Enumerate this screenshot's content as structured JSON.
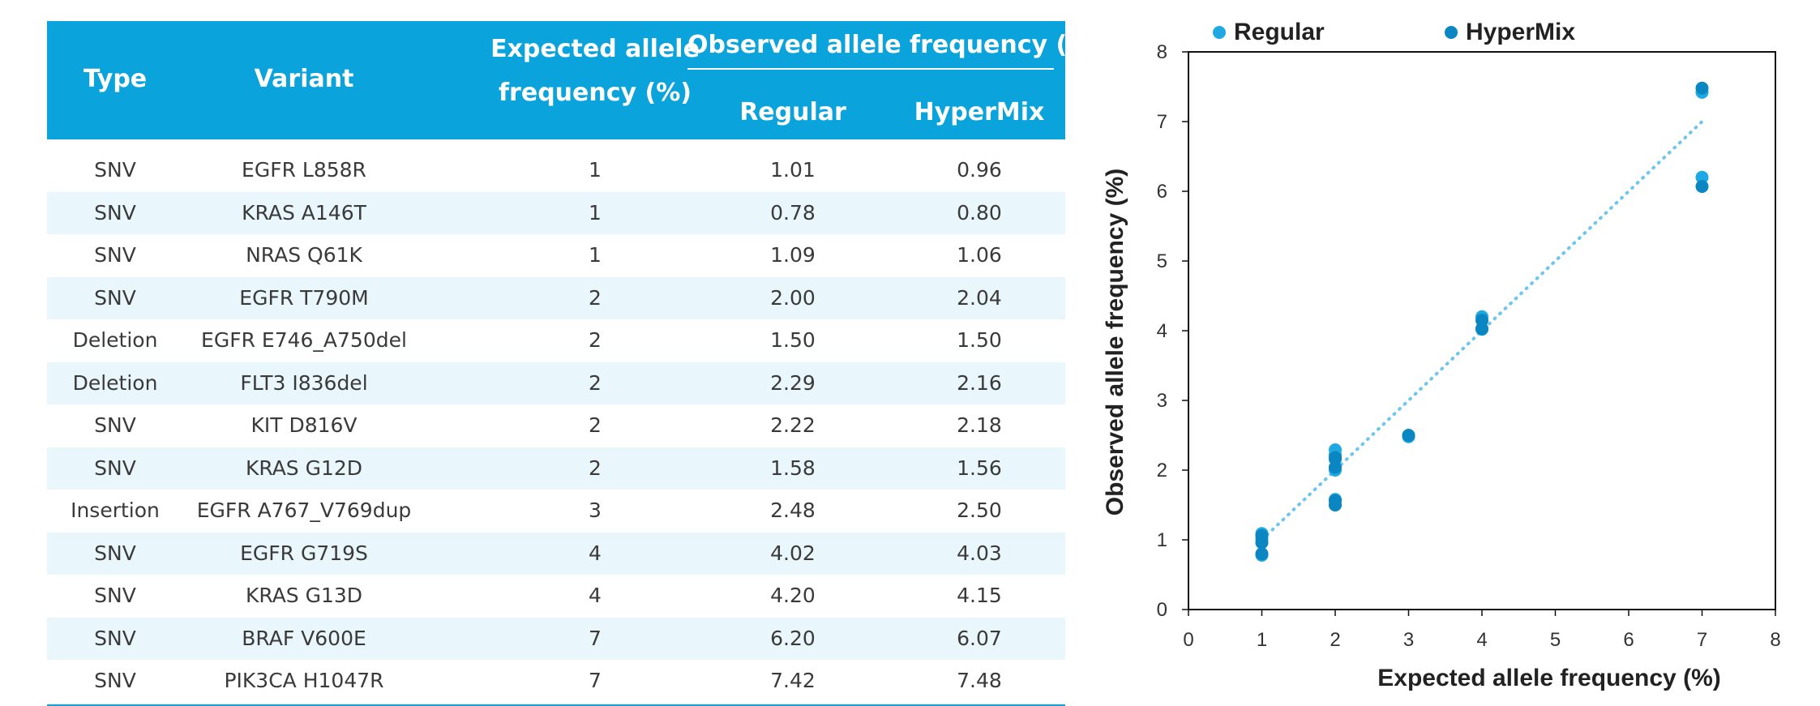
{
  "table": {
    "headers": {
      "type": "Type",
      "variant": "Variant",
      "expected": "Expected allele\nfrequency (%)",
      "expected_line1": "Expected allele",
      "expected_line2": "frequency (%)",
      "observed": "Observed allele frequency (%)",
      "regular": "Regular",
      "hypermix": "HyperMix"
    },
    "rows": [
      {
        "type": "SNV",
        "variant": "EGFR L858R",
        "expected": "1",
        "regular": "1.01",
        "hypermix": "0.96"
      },
      {
        "type": "SNV",
        "variant": "KRAS A146T",
        "expected": "1",
        "regular": "0.78",
        "hypermix": "0.80"
      },
      {
        "type": "SNV",
        "variant": "NRAS Q61K",
        "expected": "1",
        "regular": "1.09",
        "hypermix": "1.06"
      },
      {
        "type": "SNV",
        "variant": "EGFR T790M",
        "expected": "2",
        "regular": "2.00",
        "hypermix": "2.04"
      },
      {
        "type": "Deletion",
        "variant": "EGFR E746_A750del",
        "expected": "2",
        "regular": "1.50",
        "hypermix": "1.50"
      },
      {
        "type": "Deletion",
        "variant": "FLT3 I836del",
        "expected": "2",
        "regular": "2.29",
        "hypermix": "2.16"
      },
      {
        "type": "SNV",
        "variant": "KIT D816V",
        "expected": "2",
        "regular": "2.22",
        "hypermix": "2.18"
      },
      {
        "type": "SNV",
        "variant": "KRAS G12D",
        "expected": "2",
        "regular": "1.58",
        "hypermix": "1.56"
      },
      {
        "type": "Insertion",
        "variant": "EGFR A767_V769dup",
        "expected": "3",
        "regular": "2.48",
        "hypermix": "2.50"
      },
      {
        "type": "SNV",
        "variant": "EGFR G719S",
        "expected": "4",
        "regular": "4.02",
        "hypermix": "4.03"
      },
      {
        "type": "SNV",
        "variant": "KRAS G13D",
        "expected": "4",
        "regular": "4.20",
        "hypermix": "4.15"
      },
      {
        "type": "SNV",
        "variant": "BRAF V600E",
        "expected": "7",
        "regular": "6.20",
        "hypermix": "6.07"
      },
      {
        "type": "SNV",
        "variant": "PIK3CA H1047R",
        "expected": "7",
        "regular": "7.42",
        "hypermix": "7.48"
      }
    ]
  },
  "chart_data": {
    "type": "scatter",
    "xlabel": "Expected allele frequency (%)",
    "ylabel": "Observed allele frequency (%)",
    "xlim": [
      0,
      8
    ],
    "ylim": [
      0,
      8
    ],
    "xticks": [
      "0",
      "1",
      "2",
      "3",
      "4",
      "5",
      "6",
      "7",
      "8"
    ],
    "yticks": [
      "0",
      "1",
      "2",
      "3",
      "4",
      "5",
      "6",
      "7",
      "8"
    ],
    "grid": false,
    "legend_position": "top-center",
    "reference_line": {
      "style": "dotted",
      "from": [
        1,
        1
      ],
      "to": [
        7,
        7
      ]
    },
    "series": [
      {
        "name": "Regular",
        "color": "#1ea9e4",
        "x": [
          1,
          1,
          1,
          2,
          2,
          2,
          2,
          2,
          3,
          4,
          4,
          7,
          7
        ],
        "y": [
          1.01,
          0.78,
          1.09,
          2.0,
          1.5,
          2.29,
          2.22,
          1.58,
          2.48,
          4.02,
          4.2,
          6.2,
          7.42
        ]
      },
      {
        "name": "HyperMix",
        "color": "#0a86c2",
        "x": [
          1,
          1,
          1,
          2,
          2,
          2,
          2,
          2,
          3,
          4,
          4,
          7,
          7
        ],
        "y": [
          0.96,
          0.8,
          1.06,
          2.04,
          1.5,
          2.16,
          2.18,
          1.56,
          2.5,
          4.03,
          4.15,
          6.07,
          7.48
        ]
      }
    ]
  },
  "colors": {
    "header_bg": "#0aa3dc",
    "row_alt_bg": "#e9f6fc",
    "reference_line": "#6ec6ee"
  }
}
